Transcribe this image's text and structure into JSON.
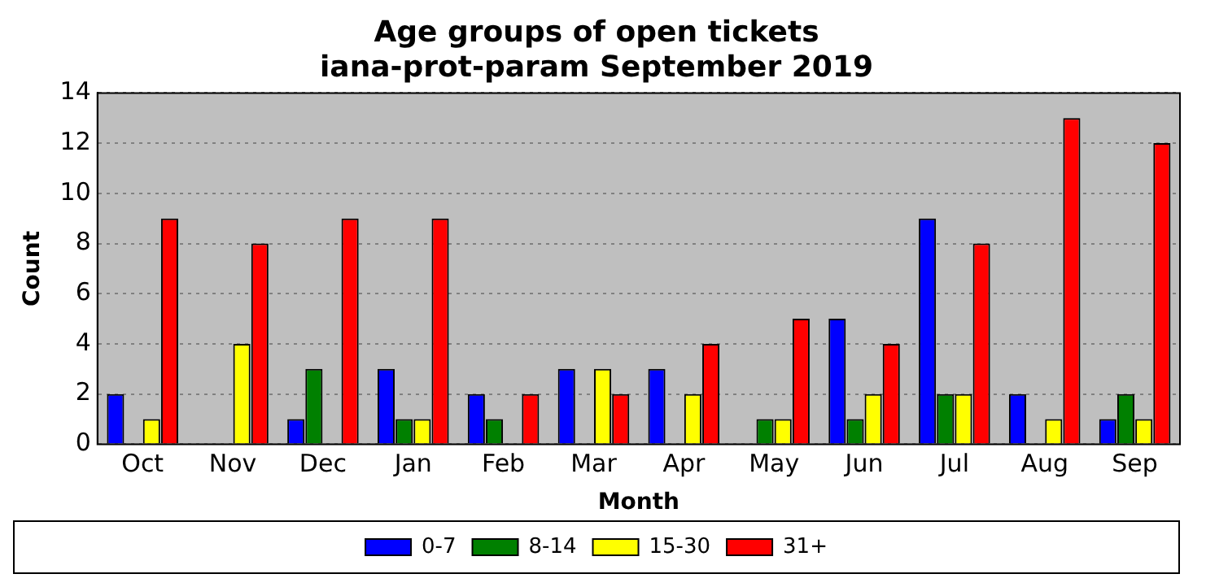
{
  "chart_data": {
    "type": "bar",
    "title": "Age groups of open tickets\niana-prot-param September 2019",
    "xlabel": "Month",
    "ylabel": "Count",
    "categories": [
      "Oct",
      "Nov",
      "Dec",
      "Jan",
      "Feb",
      "Mar",
      "Apr",
      "May",
      "Jun",
      "Jul",
      "Aug",
      "Sep"
    ],
    "series": [
      {
        "name": "0-7",
        "color": "#0000ff",
        "values": [
          2,
          0,
          1,
          3,
          2,
          3,
          3,
          0,
          5,
          9,
          2,
          1
        ]
      },
      {
        "name": "8-14",
        "color": "#008000",
        "values": [
          0,
          0,
          3,
          1,
          1,
          0,
          0,
          1,
          1,
          2,
          0,
          2
        ]
      },
      {
        "name": "15-30",
        "color": "#ffff00",
        "values": [
          1,
          4,
          0,
          1,
          0,
          3,
          2,
          1,
          2,
          2,
          1,
          1
        ]
      },
      {
        "name": "31+",
        "color": "#ff0000",
        "values": [
          9,
          8,
          9,
          9,
          2,
          2,
          4,
          5,
          4,
          8,
          13,
          12
        ]
      }
    ],
    "ylim": [
      0,
      14
    ],
    "yticks": [
      0,
      2,
      4,
      6,
      8,
      10,
      12,
      14
    ],
    "grid": "y",
    "legend": "bottom"
  }
}
